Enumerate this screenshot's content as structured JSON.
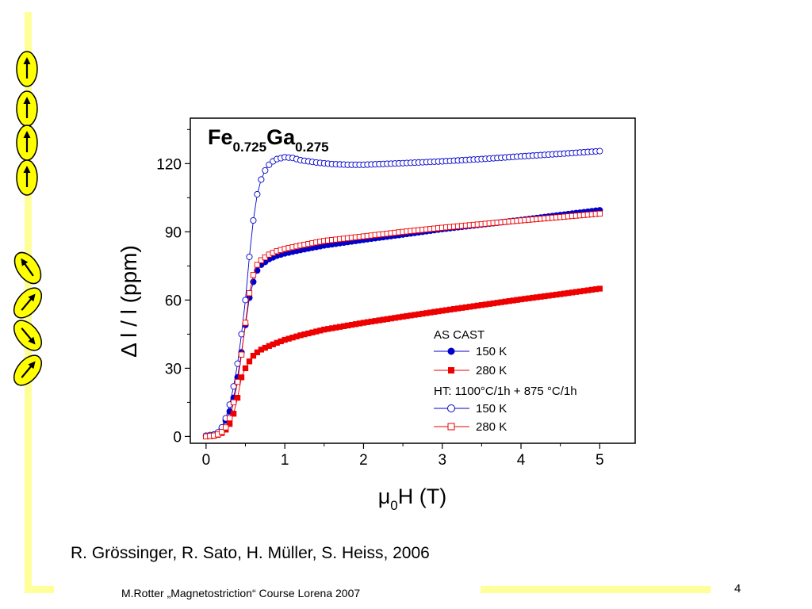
{
  "slide": {
    "reference": "R. Grössinger, R. Sato, H. Müller, S. Heiss, 2006",
    "footer": "M.Rotter „Magnetostriction“ Course Lorena 2007",
    "page_number": "4",
    "accent_color": "#ffff99",
    "domain_color": "#ffff00"
  },
  "domains": {
    "description_icons": "arrow-in-ellipse",
    "upper_group_directions_deg": [
      0,
      0,
      0,
      0
    ],
    "lower_group_directions_deg": [
      -35,
      40,
      140,
      40
    ]
  },
  "chart_data": {
    "type": "scatter",
    "title": {
      "base1": "Fe",
      "sub1": "0.725",
      "base2": "Ga",
      "sub2": "0.275"
    },
    "ylabel": "Δ l / l (ppm)",
    "xlabel": {
      "base": "μ",
      "sub": "0",
      "rest": "H (T)"
    },
    "xlim": [
      -0.2,
      5.45
    ],
    "ylim": [
      -3,
      140
    ],
    "x_ticks": [
      0,
      1,
      2,
      3,
      4,
      5
    ],
    "y_ticks": [
      0,
      30,
      60,
      90,
      120
    ],
    "grid": false,
    "legend": {
      "placement": "bottom-right",
      "group1_title": "AS CAST",
      "group2_title": "HT: 1100°C/1h + 875 °C/1h"
    },
    "series": [
      {
        "name": "150 K",
        "group": "AS CAST",
        "color": "#0000cc",
        "marker": "circle",
        "filled": true,
        "x": [
          0,
          0.1,
          0.15,
          0.2,
          0.25,
          0.3,
          0.35,
          0.4,
          0.45,
          0.5,
          0.55,
          0.6,
          0.65,
          0.7,
          0.8,
          0.9,
          1.0,
          1.2,
          1.5,
          2.0,
          2.5,
          3.0,
          3.5,
          4.0,
          4.5,
          5.0
        ],
        "y": [
          0.3,
          0.8,
          1.6,
          3.5,
          7,
          11,
          17,
          26,
          37,
          49,
          61,
          68,
          73,
          75.5,
          78,
          79.5,
          80.5,
          82,
          84,
          86.5,
          88.8,
          91.2,
          93.2,
          95.2,
          97.4,
          99.5
        ]
      },
      {
        "name": "280 K",
        "group": "AS CAST",
        "color": "#ee0000",
        "marker": "square",
        "filled": true,
        "x": [
          0,
          0.1,
          0.15,
          0.2,
          0.25,
          0.3,
          0.35,
          0.4,
          0.45,
          0.5,
          0.55,
          0.6,
          0.65,
          0.7,
          0.8,
          0.9,
          1.0,
          1.2,
          1.5,
          2.0,
          2.5,
          3.0,
          3.5,
          4.0,
          4.5,
          5.0
        ],
        "y": [
          0,
          0.3,
          0.7,
          1.5,
          3,
          5.5,
          10,
          17,
          26,
          30,
          33,
          35.5,
          37,
          38.2,
          39.8,
          41.2,
          42.5,
          44.5,
          47,
          50,
          52.7,
          55.3,
          57.8,
          60.3,
          62.6,
          65
        ]
      },
      {
        "name": "150 K",
        "group": "HT: 1100°C/1h + 875 °C/1h",
        "color": "#0000cc",
        "marker": "circle",
        "filled": false,
        "x": [
          0,
          0.1,
          0.15,
          0.2,
          0.25,
          0.3,
          0.35,
          0.4,
          0.45,
          0.5,
          0.55,
          0.6,
          0.65,
          0.7,
          0.75,
          0.8,
          0.85,
          0.9,
          1.0,
          1.1,
          1.2,
          1.4,
          1.6,
          1.8,
          2.0,
          2.5,
          3.0,
          3.5,
          4.0,
          4.5,
          5.0
        ],
        "y": [
          0.3,
          0.8,
          1.8,
          4,
          8,
          14,
          22,
          32,
          45,
          60,
          79,
          95,
          106.5,
          113,
          117,
          119.5,
          121,
          122,
          122.8,
          122.5,
          121.5,
          120.5,
          119.8,
          119.5,
          119.5,
          120.2,
          121,
          122,
          123.2,
          124.3,
          125.5
        ]
      },
      {
        "name": "280 K",
        "group": "HT: 1100°C/1h + 875 °C/1h",
        "color": "#ee0000",
        "marker": "square",
        "filled": false,
        "x": [
          0,
          0.1,
          0.15,
          0.2,
          0.25,
          0.3,
          0.35,
          0.4,
          0.45,
          0.5,
          0.55,
          0.6,
          0.65,
          0.7,
          0.8,
          0.9,
          1.0,
          1.2,
          1.5,
          2.0,
          2.5,
          3.0,
          3.5,
          4.0,
          4.5,
          5.0
        ],
        "y": [
          0,
          0.4,
          0.9,
          2,
          4,
          8,
          15,
          24,
          36,
          50,
          63,
          71,
          75.5,
          77.5,
          80,
          81.5,
          82.5,
          84,
          86,
          88,
          90,
          91.8,
          93.4,
          95,
          96.5,
          98
        ]
      }
    ]
  }
}
